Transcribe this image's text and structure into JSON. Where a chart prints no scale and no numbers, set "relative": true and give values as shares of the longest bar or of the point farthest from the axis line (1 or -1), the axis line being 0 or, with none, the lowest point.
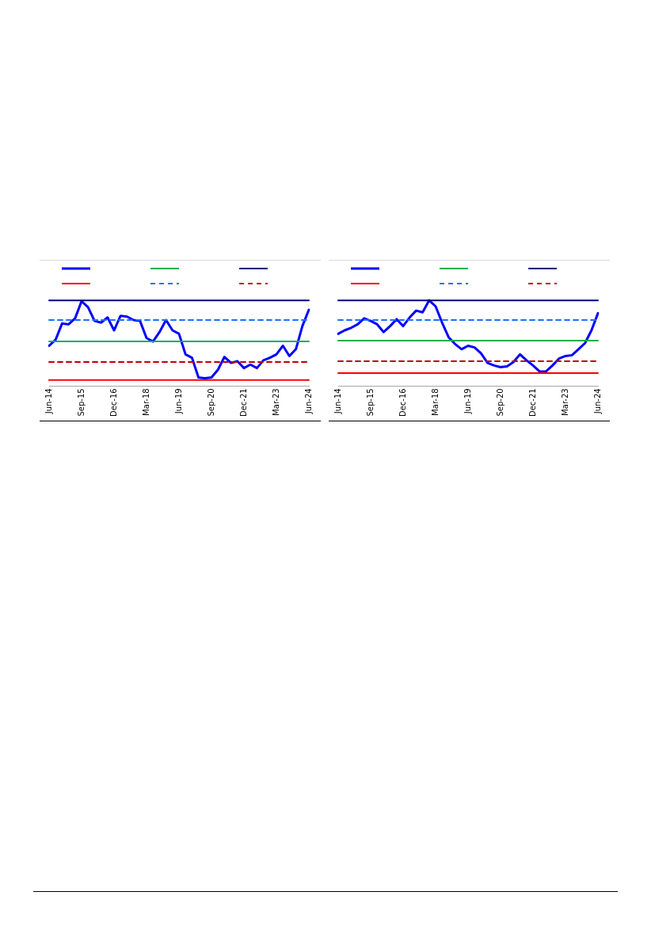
{
  "chart_data": [
    {
      "type": "line",
      "relative": true,
      "grid": false,
      "marker": "none",
      "tick_labels": "x",
      "categories": [
        "Jun-14",
        null,
        null,
        null,
        null,
        "Sep-15",
        null,
        null,
        null,
        null,
        "Dec-16",
        null,
        null,
        null,
        null,
        "Mar-18",
        null,
        null,
        null,
        null,
        "Jun-19",
        null,
        null,
        null,
        null,
        "Sep-20",
        null,
        null,
        null,
        null,
        "Dec-21",
        null,
        null,
        null,
        null,
        "Mar-23",
        null,
        null,
        null,
        null,
        "Jun-24"
      ],
      "series": [
        {
          "color": "#0000ff",
          "values": [
            0.47,
            0.54,
            0.73,
            0.72,
            0.79,
            0.99,
            0.92,
            0.76,
            0.74,
            0.8,
            0.65,
            0.82,
            0.81,
            0.77,
            0.76,
            0.56,
            0.52,
            0.63,
            0.77,
            0.65,
            0.61,
            0.37,
            0.33,
            0.1,
            0.09,
            0.1,
            0.19,
            0.34,
            0.27,
            0.29,
            0.21,
            0.25,
            0.21,
            0.3,
            0.33,
            0.37,
            0.47,
            0.35,
            0.43,
            0.7,
            0.89
          ]
        },
        {
          "color": "#00b050",
          "values": [
            0.52,
            0.52,
            0.52,
            0.52,
            0.52,
            0.52,
            0.52,
            0.52,
            0.52,
            0.52,
            0.52,
            0.52,
            0.52,
            0.52,
            0.52,
            0.52,
            0.52,
            0.52,
            0.52,
            0.52,
            0.52,
            0.52,
            0.52,
            0.52,
            0.52,
            0.52,
            0.52,
            0.52,
            0.52,
            0.52,
            0.52,
            0.52,
            0.52,
            0.52,
            0.52,
            0.52,
            0.52,
            0.52,
            0.52,
            0.52,
            0.52
          ]
        },
        {
          "color": "#000080",
          "values": [
            1,
            1,
            1,
            1,
            1,
            1,
            1,
            1,
            1,
            1,
            1,
            1,
            1,
            1,
            1,
            1,
            1,
            1,
            1,
            1,
            1,
            1,
            1,
            1,
            1,
            1,
            1,
            1,
            1,
            1,
            1,
            1,
            1,
            1,
            1,
            1,
            1,
            1,
            1,
            1,
            1
          ]
        },
        {
          "color": "#ff0000",
          "values": [
            0.07,
            0.07,
            0.07,
            0.07,
            0.07,
            0.07,
            0.07,
            0.07,
            0.07,
            0.07,
            0.07,
            0.07,
            0.07,
            0.07,
            0.07,
            0.07,
            0.07,
            0.07,
            0.07,
            0.07,
            0.07,
            0.07,
            0.07,
            0.07,
            0.07,
            0.07,
            0.07,
            0.07,
            0.07,
            0.07,
            0.07,
            0.07,
            0.07,
            0.07,
            0.07,
            0.07,
            0.07,
            0.07,
            0.07,
            0.07,
            0.07
          ]
        },
        {
          "color": "#1f70ff",
          "line_style": "dashed",
          "values": [
            0.77,
            0.77,
            0.77,
            0.77,
            0.77,
            0.77,
            0.77,
            0.77,
            0.77,
            0.77,
            0.77,
            0.77,
            0.77,
            0.77,
            0.77,
            0.77,
            0.77,
            0.77,
            0.77,
            0.77,
            0.77,
            0.77,
            0.77,
            0.77,
            0.77,
            0.77,
            0.77,
            0.77,
            0.77,
            0.77,
            0.77,
            0.77,
            0.77,
            0.77,
            0.77,
            0.77,
            0.77,
            0.77,
            0.77,
            0.77,
            0.77
          ]
        },
        {
          "color": "#c00000",
          "line_style": "dashed",
          "values": [
            0.28,
            0.28,
            0.28,
            0.28,
            0.28,
            0.28,
            0.28,
            0.28,
            0.28,
            0.28,
            0.28,
            0.28,
            0.28,
            0.28,
            0.28,
            0.28,
            0.28,
            0.28,
            0.28,
            0.28,
            0.28,
            0.28,
            0.28,
            0.28,
            0.28,
            0.28,
            0.28,
            0.28,
            0.28,
            0.28,
            0.28,
            0.28,
            0.28,
            0.28,
            0.28,
            0.28,
            0.28,
            0.28,
            0.28,
            0.28,
            0.28
          ]
        }
      ]
    },
    {
      "type": "line",
      "relative": true,
      "grid": false,
      "marker": "none",
      "tick_labels": "x",
      "categories": [
        "Jun-14",
        null,
        null,
        null,
        null,
        "Sep-15",
        null,
        null,
        null,
        null,
        "Dec-16",
        null,
        null,
        null,
        null,
        "Mar-18",
        null,
        null,
        null,
        null,
        "Jun-19",
        null,
        null,
        null,
        null,
        "Sep-20",
        null,
        null,
        null,
        null,
        "Dec-21",
        null,
        null,
        null,
        null,
        "Mar-23",
        null,
        null,
        null,
        null,
        "Jun-24"
      ],
      "series": [
        {
          "color": "#0000ff",
          "values": [
            0.61,
            0.65,
            0.68,
            0.72,
            0.79,
            0.76,
            0.72,
            0.63,
            0.7,
            0.78,
            0.7,
            0.8,
            0.88,
            0.86,
            1,
            0.93,
            0.74,
            0.57,
            0.49,
            0.43,
            0.47,
            0.45,
            0.38,
            0.27,
            0.24,
            0.22,
            0.23,
            0.28,
            0.37,
            0.3,
            0.24,
            0.17,
            0.17,
            0.24,
            0.32,
            0.35,
            0.36,
            0.43,
            0.5,
            0.65,
            0.85
          ]
        },
        {
          "color": "#00b050",
          "values": [
            0.53,
            0.53,
            0.53,
            0.53,
            0.53,
            0.53,
            0.53,
            0.53,
            0.53,
            0.53,
            0.53,
            0.53,
            0.53,
            0.53,
            0.53,
            0.53,
            0.53,
            0.53,
            0.53,
            0.53,
            0.53,
            0.53,
            0.53,
            0.53,
            0.53,
            0.53,
            0.53,
            0.53,
            0.53,
            0.53,
            0.53,
            0.53,
            0.53,
            0.53,
            0.53,
            0.53,
            0.53,
            0.53,
            0.53,
            0.53,
            0.53
          ]
        },
        {
          "color": "#000080",
          "values": [
            1,
            1,
            1,
            1,
            1,
            1,
            1,
            1,
            1,
            1,
            1,
            1,
            1,
            1,
            1,
            1,
            1,
            1,
            1,
            1,
            1,
            1,
            1,
            1,
            1,
            1,
            1,
            1,
            1,
            1,
            1,
            1,
            1,
            1,
            1,
            1,
            1,
            1,
            1,
            1,
            1
          ]
        },
        {
          "color": "#ff0000",
          "values": [
            0.15,
            0.15,
            0.15,
            0.15,
            0.15,
            0.15,
            0.15,
            0.15,
            0.15,
            0.15,
            0.15,
            0.15,
            0.15,
            0.15,
            0.15,
            0.15,
            0.15,
            0.15,
            0.15,
            0.15,
            0.15,
            0.15,
            0.15,
            0.15,
            0.15,
            0.15,
            0.15,
            0.15,
            0.15,
            0.15,
            0.15,
            0.15,
            0.15,
            0.15,
            0.15,
            0.15,
            0.15,
            0.15,
            0.15,
            0.15,
            0.15
          ]
        },
        {
          "color": "#1f70ff",
          "line_style": "dashed",
          "values": [
            0.77,
            0.77,
            0.77,
            0.77,
            0.77,
            0.77,
            0.77,
            0.77,
            0.77,
            0.77,
            0.77,
            0.77,
            0.77,
            0.77,
            0.77,
            0.77,
            0.77,
            0.77,
            0.77,
            0.77,
            0.77,
            0.77,
            0.77,
            0.77,
            0.77,
            0.77,
            0.77,
            0.77,
            0.77,
            0.77,
            0.77,
            0.77,
            0.77,
            0.77,
            0.77,
            0.77,
            0.77,
            0.77,
            0.77,
            0.77,
            0.77
          ]
        },
        {
          "color": "#c00000",
          "line_style": "dashed",
          "values": [
            0.29,
            0.29,
            0.29,
            0.29,
            0.29,
            0.29,
            0.29,
            0.29,
            0.29,
            0.29,
            0.29,
            0.29,
            0.29,
            0.29,
            0.29,
            0.29,
            0.29,
            0.29,
            0.29,
            0.29,
            0.29,
            0.29,
            0.29,
            0.29,
            0.29,
            0.29,
            0.29,
            0.29,
            0.29,
            0.29,
            0.29,
            0.29,
            0.29,
            0.29,
            0.29,
            0.29,
            0.29,
            0.29,
            0.29,
            0.29,
            0.29
          ]
        }
      ]
    }
  ]
}
